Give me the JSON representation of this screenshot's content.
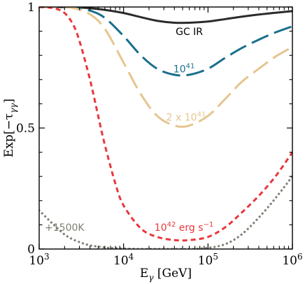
{
  "chart_data": {
    "type": "line",
    "xscale": "log",
    "xlim": [
      1000,
      1000000
    ],
    "ylim": [
      0,
      1
    ],
    "xlabel": {
      "main": "E",
      "sub": "γ",
      "rest": " [GeV]"
    },
    "ylabel": {
      "main": "Exp[−τ",
      "sub": "γγ",
      "rest": "]"
    },
    "xticks": [
      {
        "value": 1000,
        "base": "10",
        "exp": "3"
      },
      {
        "value": 10000,
        "base": "10",
        "exp": "4"
      },
      {
        "value": 100000,
        "base": "10",
        "exp": "5"
      },
      {
        "value": 1000000,
        "base": "10",
        "exp": "6"
      }
    ],
    "yticks": [
      {
        "value": 0,
        "label": "0"
      },
      {
        "value": 0.5,
        "label": "0.5"
      },
      {
        "value": 1,
        "label": "1"
      }
    ],
    "series": [
      {
        "id": "gc-ir",
        "color": "#2b2b2b",
        "dash": "solid",
        "x": [
          1000,
          1500,
          2500,
          4000,
          6000,
          10000,
          16000,
          25000,
          40000,
          60000,
          100000,
          160000,
          250000,
          400000,
          630000,
          1000000
        ],
        "y": [
          1.0,
          1.0,
          0.999,
          0.995,
          0.988,
          0.975,
          0.958,
          0.943,
          0.935,
          0.935,
          0.94,
          0.95,
          0.96,
          0.969,
          0.976,
          0.983
        ]
      },
      {
        "id": "l41",
        "color": "#186f8c",
        "dash": "long",
        "x": [
          1000,
          1500,
          2500,
          4000,
          6000,
          10000,
          16000,
          25000,
          40000,
          60000,
          100000,
          160000,
          250000,
          400000,
          630000,
          1000000
        ],
        "y": [
          1.0,
          1.0,
          0.998,
          0.985,
          0.955,
          0.88,
          0.8,
          0.745,
          0.72,
          0.72,
          0.745,
          0.79,
          0.83,
          0.865,
          0.895,
          0.92
        ]
      },
      {
        "id": "l2x41",
        "color": "#e5c58f",
        "dash": "long",
        "x": [
          1000,
          1500,
          2500,
          4000,
          6000,
          10000,
          16000,
          25000,
          40000,
          60000,
          100000,
          160000,
          250000,
          400000,
          630000,
          1000000
        ],
        "y": [
          1.0,
          1.0,
          0.996,
          0.97,
          0.91,
          0.77,
          0.64,
          0.55,
          0.51,
          0.51,
          0.55,
          0.62,
          0.69,
          0.745,
          0.795,
          0.835
        ]
      },
      {
        "id": "l42",
        "color": "#e8383d",
        "dash": "short",
        "x": [
          1000,
          1500,
          2000,
          2500,
          3000,
          4000,
          5000,
          6000,
          8000,
          10000,
          16000,
          25000,
          40000,
          60000,
          100000,
          160000,
          250000,
          400000,
          630000,
          1000000
        ],
        "y": [
          1.0,
          0.995,
          0.975,
          0.93,
          0.86,
          0.7,
          0.55,
          0.43,
          0.27,
          0.18,
          0.085,
          0.05,
          0.037,
          0.037,
          0.05,
          0.09,
          0.15,
          0.22,
          0.3,
          0.4
        ]
      },
      {
        "id": "k1500",
        "color": "#7f7f73",
        "dash": "dot",
        "x": [
          1000,
          1300,
          1600,
          2000,
          2500,
          3200,
          4000,
          5000,
          6500,
          8000,
          10000,
          16000,
          25000,
          40000,
          60000,
          100000,
          160000,
          250000,
          400000,
          630000,
          1000000
        ],
        "y": [
          0.16,
          0.12,
          0.09,
          0.06,
          0.04,
          0.025,
          0.015,
          0.01,
          0.005,
          0.003,
          0.002,
          0.0,
          0.0,
          0.0,
          0.0,
          0.005,
          0.02,
          0.06,
          0.13,
          0.21,
          0.3
        ]
      }
    ],
    "annotations": [
      {
        "id": "gc-ir",
        "text": "GC  IR",
        "base": "",
        "sup": "",
        "rest": "",
        "color": "#000000",
        "x": 60000,
        "y": 0.885
      },
      {
        "id": "l41",
        "text": "",
        "base": "10",
        "sup": "41",
        "rest": "",
        "color": "#186f8c",
        "x": 52000,
        "y": 0.73
      },
      {
        "id": "l2x41",
        "text": "",
        "base": "2 x 10",
        "sup": "41",
        "rest": "",
        "color": "#e5c58f",
        "x": 55000,
        "y": 0.53
      },
      {
        "id": "l42",
        "text": "",
        "base": "10",
        "sup": "42",
        "rest": " erg s",
        "sup2": "−1",
        "color": "#e8383d",
        "x": 52000,
        "y": 0.075
      },
      {
        "id": "k1500",
        "text": "+1500K",
        "base": "",
        "sup": "",
        "rest": "",
        "color": "#7f7f73",
        "x": 2000,
        "y": 0.075
      }
    ]
  }
}
